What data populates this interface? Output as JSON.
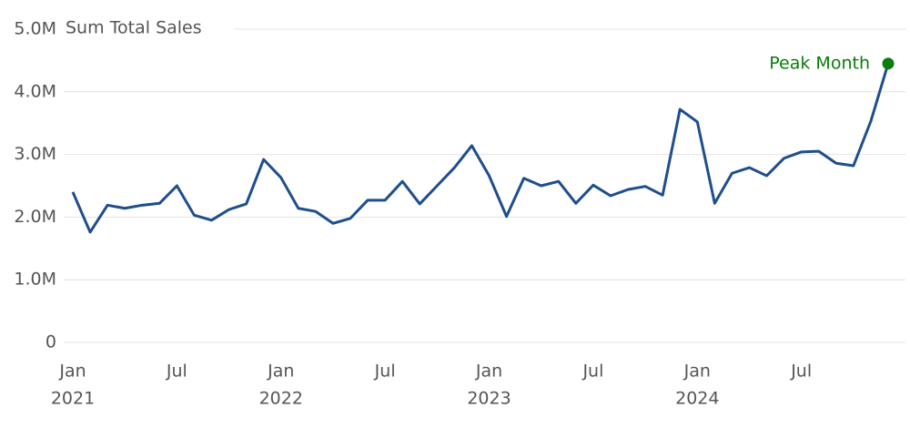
{
  "chart_data": {
    "type": "line",
    "y_title": "Sum Total Sales",
    "x": [
      "2021-01",
      "2021-02",
      "2021-03",
      "2021-04",
      "2021-05",
      "2021-06",
      "2021-07",
      "2021-08",
      "2021-09",
      "2021-10",
      "2021-11",
      "2021-12",
      "2022-01",
      "2022-02",
      "2022-03",
      "2022-04",
      "2022-05",
      "2022-06",
      "2022-07",
      "2022-08",
      "2022-09",
      "2022-10",
      "2022-11",
      "2022-12",
      "2023-01",
      "2023-02",
      "2023-03",
      "2023-04",
      "2023-05",
      "2023-06",
      "2023-07",
      "2023-08",
      "2023-09",
      "2023-10",
      "2023-11",
      "2023-12",
      "2024-01",
      "2024-02",
      "2024-03",
      "2024-04",
      "2024-05",
      "2024-06",
      "2024-07",
      "2024-08",
      "2024-09",
      "2024-10",
      "2024-11",
      "2024-12"
    ],
    "series": [
      {
        "name": "Sum Total Sales",
        "color": "#1f4e8c",
        "values": [
          2400000,
          1760000,
          2190000,
          2140000,
          2190000,
          2220000,
          2500000,
          2030000,
          1950000,
          2120000,
          2210000,
          2920000,
          2630000,
          2140000,
          2090000,
          1900000,
          1980000,
          2270000,
          2270000,
          2570000,
          2210000,
          2500000,
          2790000,
          3140000,
          2660000,
          2010000,
          2620000,
          2500000,
          2570000,
          2220000,
          2510000,
          2340000,
          2440000,
          2490000,
          2350000,
          3720000,
          3520000,
          2220000,
          2700000,
          2790000,
          2660000,
          2940000,
          3040000,
          3050000,
          2860000,
          2820000,
          3530000,
          4450000
        ]
      }
    ],
    "ylim": [
      0,
      5000000
    ],
    "yticks": [
      0,
      {
        "value": 1000000,
        "label": "1.0M"
      },
      {
        "value": 2000000,
        "label": "2.0M"
      },
      {
        "value": 3000000,
        "label": "3.0M"
      },
      {
        "value": 4000000,
        "label": "4.0M"
      },
      {
        "value": 5000000,
        "label": "5.0M"
      }
    ],
    "xticks": [
      {
        "value": "2021-01",
        "label": "Jan",
        "year": "2021"
      },
      {
        "value": "2021-07",
        "label": "Jul"
      },
      {
        "value": "2022-01",
        "label": "Jan",
        "year": "2022"
      },
      {
        "value": "2022-07",
        "label": "Jul"
      },
      {
        "value": "2023-01",
        "label": "Jan",
        "year": "2023"
      },
      {
        "value": "2023-07",
        "label": "Jul"
      },
      {
        "value": "2024-01",
        "label": "Jan",
        "year": "2024"
      },
      {
        "value": "2024-07",
        "label": "Jul"
      }
    ],
    "grid": true,
    "annotation": {
      "text": "Peak Month",
      "index": 47,
      "color": "#0a7d0a"
    }
  }
}
